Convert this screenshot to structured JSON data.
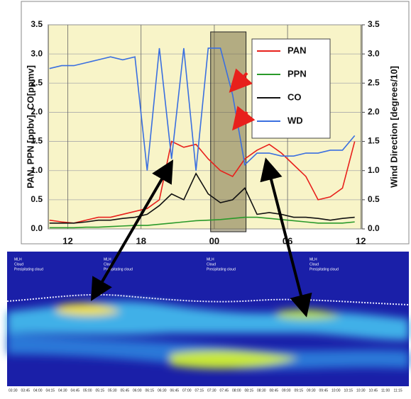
{
  "chart_data": {
    "type": "line",
    "ylabel": "PAN, PPN [ppbv], CO[ppmv]",
    "y2label": "Wind Direction [degrees/10]",
    "x": [
      -1.5,
      -0.5,
      0.5,
      1.5,
      2.5,
      3.5,
      4.5,
      5.5,
      6.5,
      7.5,
      8.5,
      9.5,
      10.5,
      11.5,
      12.5,
      13.5,
      14.5,
      15.5,
      16.5,
      17.5,
      18.5,
      19.5,
      20.5,
      21.5,
      22.5,
      23.5
    ],
    "xlim": [
      -1.6,
      24.1
    ],
    "xticks": [
      {
        "value": 0,
        "label": "12"
      },
      {
        "value": 6,
        "label": "18"
      },
      {
        "value": 12,
        "label": "00"
      },
      {
        "value": 18,
        "label": "06"
      },
      {
        "value": 24,
        "label": "12"
      }
    ],
    "ylim": [
      0,
      3.5
    ],
    "yticks": [
      {
        "value": 0,
        "label": "0.0"
      },
      {
        "value": 0.5,
        "label": "0.5"
      },
      {
        "value": 1,
        "label": "1.0"
      },
      {
        "value": 1.5,
        "label": "1.5"
      },
      {
        "value": 2,
        "label": "2.0"
      },
      {
        "value": 2.5,
        "label": "2.5"
      },
      {
        "value": 3,
        "label": "3.0"
      },
      {
        "value": 3.5,
        "label": "3.5"
      }
    ],
    "y2lim": [
      0,
      3.5
    ],
    "y2ticks": [
      {
        "value": 0,
        "label": "0.0"
      },
      {
        "value": 0.5,
        "label": "0.5"
      },
      {
        "value": 1,
        "label": "1.0"
      },
      {
        "value": 1.5,
        "label": "1.5"
      },
      {
        "value": 2,
        "label": "2.0"
      },
      {
        "value": 2.5,
        "label": "2.5"
      },
      {
        "value": 3,
        "label": "3.0"
      },
      {
        "value": 3.5,
        "label": "3.5"
      }
    ],
    "grid": true,
    "highlight_x": [
      11.7,
      14.6
    ],
    "series": [
      {
        "name": "PAN",
        "color": "#e8201c",
        "values": [
          0.15,
          0.12,
          0.1,
          0.15,
          0.2,
          0.2,
          0.25,
          0.3,
          0.35,
          0.5,
          1.5,
          1.4,
          1.45,
          1.2,
          1.0,
          0.9,
          1.2,
          1.35,
          1.45,
          1.3,
          1.1,
          0.9,
          0.5,
          0.55,
          0.7,
          1.5
        ]
      },
      {
        "name": "PPN",
        "color": "#2a9a2a",
        "values": [
          0.02,
          0.02,
          0.02,
          0.03,
          0.03,
          0.04,
          0.05,
          0.06,
          0.06,
          0.08,
          0.1,
          0.12,
          0.14,
          0.15,
          0.16,
          0.18,
          0.2,
          0.2,
          0.18,
          0.16,
          0.14,
          0.12,
          0.1,
          0.1,
          0.1,
          0.12
        ]
      },
      {
        "name": "CO",
        "color": "#111111",
        "values": [
          0.1,
          0.1,
          0.1,
          0.12,
          0.15,
          0.15,
          0.18,
          0.2,
          0.25,
          0.4,
          0.6,
          0.5,
          0.95,
          0.6,
          0.45,
          0.5,
          0.7,
          0.25,
          0.28,
          0.25,
          0.2,
          0.2,
          0.18,
          0.15,
          0.18,
          0.2
        ]
      },
      {
        "name": "WD",
        "color": "#3a6fe0",
        "axis": "y2",
        "values": [
          2.75,
          2.8,
          2.8,
          2.85,
          2.9,
          2.95,
          2.9,
          2.95,
          1.0,
          3.1,
          1.2,
          3.1,
          1.0,
          3.1,
          3.1,
          2.3,
          1.1,
          1.3,
          1.3,
          1.25,
          1.25,
          1.3,
          1.3,
          1.35,
          1.35,
          1.6
        ]
      }
    ]
  },
  "lidar_image": {
    "legend": [
      "MLH",
      "Cloud",
      "Precipitating cloud"
    ],
    "time_labels": [
      "03:30",
      "03:45",
      "04:00",
      "04:15",
      "04:30",
      "04:45",
      "05:00",
      "05:15",
      "05:30",
      "05:45",
      "06:00",
      "06:15",
      "06:30",
      "06:45",
      "07:00",
      "07:15",
      "07:30",
      "07:45",
      "08:00",
      "08:15",
      "08:30",
      "08:45",
      "09:00",
      "09:15",
      "09:30",
      "09:45",
      "10:00",
      "10:15",
      "10:30",
      "10:45",
      "11:00",
      "11:15"
    ]
  }
}
